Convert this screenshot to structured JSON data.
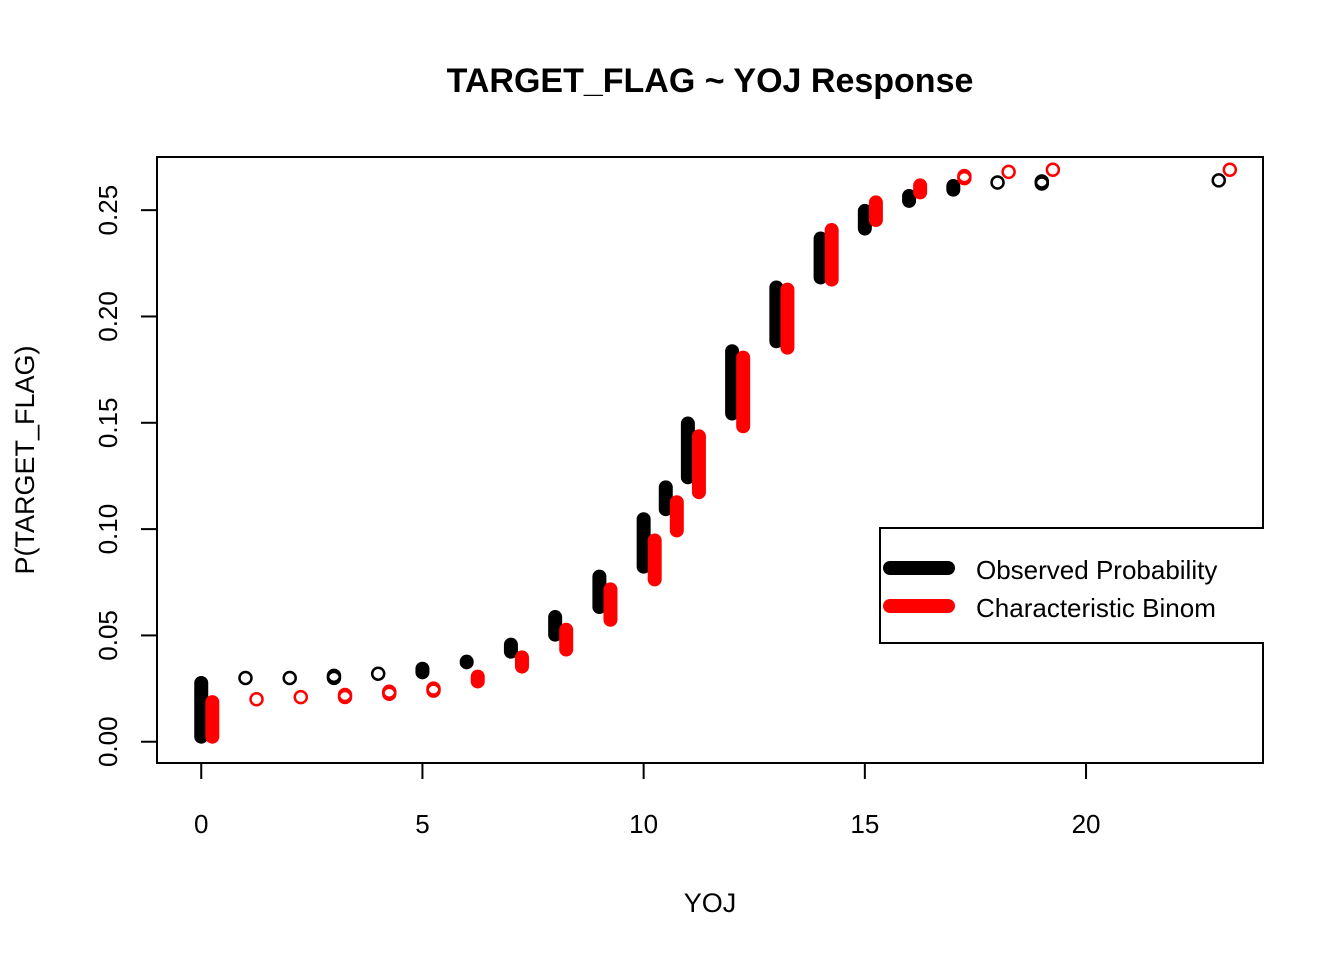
{
  "chart_data": {
    "type": "scatter",
    "title": "TARGET_FLAG ~ YOJ Response",
    "xlabel": "YOJ",
    "ylabel": "P(TARGET_FLAG)",
    "xlim": [
      -1,
      24
    ],
    "ylim": [
      -0.01,
      0.275
    ],
    "xticks": [
      0,
      5,
      10,
      15,
      20
    ],
    "yticks": [
      0.0,
      0.05,
      0.1,
      0.15,
      0.2,
      0.25
    ],
    "xtick_labels": [
      "0",
      "5",
      "10",
      "15",
      "20"
    ],
    "ytick_labels": [
      "0.00",
      "0.05",
      "0.10",
      "0.15",
      "0.20",
      "0.25"
    ],
    "legend": {
      "position": "right",
      "entries": [
        "Observed Probability",
        "Characteristic Binom"
      ]
    },
    "series": [
      {
        "name": "Observed Probability",
        "color": "#000000",
        "points": [
          {
            "x": 0,
            "ymin": 0.0,
            "ymax": 0.03
          },
          {
            "x": 1,
            "ymin": 0.03,
            "ymax": 0.03
          },
          {
            "x": 2,
            "ymin": 0.03,
            "ymax": 0.03
          },
          {
            "x": 3,
            "ymin": 0.03,
            "ymax": 0.032
          },
          {
            "x": 4,
            "ymin": 0.032,
            "ymax": 0.032
          },
          {
            "x": 5,
            "ymin": 0.032,
            "ymax": 0.035
          },
          {
            "x": 6,
            "ymin": 0.035,
            "ymax": 0.04
          },
          {
            "x": 7,
            "ymin": 0.04,
            "ymax": 0.048
          },
          {
            "x": 8,
            "ymin": 0.048,
            "ymax": 0.061
          },
          {
            "x": 9,
            "ymin": 0.061,
            "ymax": 0.08
          },
          {
            "x": 10,
            "ymin": 0.08,
            "ymax": 0.107
          },
          {
            "x": 10.5,
            "ymin": 0.107,
            "ymax": 0.122
          },
          {
            "x": 11,
            "ymin": 0.122,
            "ymax": 0.152
          },
          {
            "x": 12,
            "ymin": 0.152,
            "ymax": 0.186
          },
          {
            "x": 13,
            "ymin": 0.186,
            "ymax": 0.216
          },
          {
            "x": 14,
            "ymin": 0.216,
            "ymax": 0.239
          },
          {
            "x": 15,
            "ymin": 0.239,
            "ymax": 0.252
          },
          {
            "x": 16,
            "ymin": 0.252,
            "ymax": 0.259
          },
          {
            "x": 17,
            "ymin": 0.259,
            "ymax": 0.262
          },
          {
            "x": 18,
            "ymin": 0.263,
            "ymax": 0.263
          },
          {
            "x": 19,
            "ymin": 0.263,
            "ymax": 0.264
          },
          {
            "x": 23,
            "ymin": 0.264,
            "ymax": 0.264
          }
        ]
      },
      {
        "name": "Characteristic Binom",
        "color": "#ff0000",
        "points": [
          {
            "x": 0.25,
            "ymin": 0.0,
            "ymax": 0.021
          },
          {
            "x": 1.25,
            "ymin": 0.02,
            "ymax": 0.02
          },
          {
            "x": 2.25,
            "ymin": 0.021,
            "ymax": 0.021
          },
          {
            "x": 3.25,
            "ymin": 0.021,
            "ymax": 0.023
          },
          {
            "x": 4.25,
            "ymin": 0.023,
            "ymax": 0.024
          },
          {
            "x": 5.25,
            "ymin": 0.024,
            "ymax": 0.026
          },
          {
            "x": 6.25,
            "ymin": 0.026,
            "ymax": 0.033
          },
          {
            "x": 7.25,
            "ymin": 0.033,
            "ymax": 0.042
          },
          {
            "x": 8.25,
            "ymin": 0.041,
            "ymax": 0.055
          },
          {
            "x": 9.25,
            "ymin": 0.055,
            "ymax": 0.074
          },
          {
            "x": 10.25,
            "ymin": 0.074,
            "ymax": 0.097
          },
          {
            "x": 10.75,
            "ymin": 0.097,
            "ymax": 0.115
          },
          {
            "x": 11.25,
            "ymin": 0.115,
            "ymax": 0.146
          },
          {
            "x": 12.25,
            "ymin": 0.146,
            "ymax": 0.183
          },
          {
            "x": 13.25,
            "ymin": 0.183,
            "ymax": 0.215
          },
          {
            "x": 14.25,
            "ymin": 0.215,
            "ymax": 0.243
          },
          {
            "x": 15.25,
            "ymin": 0.243,
            "ymax": 0.256
          },
          {
            "x": 16.25,
            "ymin": 0.256,
            "ymax": 0.264
          },
          {
            "x": 17.25,
            "ymin": 0.265,
            "ymax": 0.267
          },
          {
            "x": 18.25,
            "ymin": 0.268,
            "ymax": 0.268
          },
          {
            "x": 19.25,
            "ymin": 0.269,
            "ymax": 0.269
          },
          {
            "x": 23.25,
            "ymin": 0.269,
            "ymax": 0.269
          }
        ]
      }
    ]
  }
}
